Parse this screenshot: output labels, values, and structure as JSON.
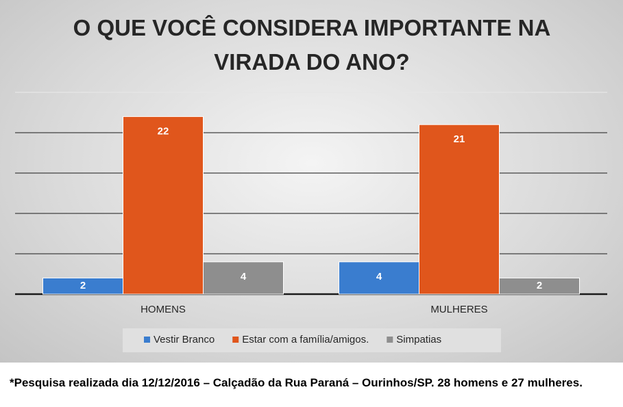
{
  "chart_data": {
    "type": "bar",
    "title": "O QUE VOCÊ CONSIDERA IMPORTANTE NA VIRADA DO ANO?",
    "categories": [
      "HOMENS",
      "MULHERES"
    ],
    "series": [
      {
        "name": "Vestir Branco",
        "color": "#3a7dcf",
        "values": [
          2,
          4
        ]
      },
      {
        "name": "Estar com a família/amigos.",
        "color": "#e0561c",
        "values": [
          22,
          21
        ]
      },
      {
        "name": "Simpatias",
        "color": "#8e8e8e",
        "values": [
          4,
          2
        ]
      }
    ],
    "ylim": [
      0,
      25
    ],
    "yticks": [
      0,
      5,
      10,
      15,
      20,
      25
    ],
    "grid": true,
    "legend": "bottom"
  },
  "note": "*Pesquisa realizada dia 12/12/2016 – Calçadão da Rua Paraná – Ourinhos/SP. 28 homens e 27 mulheres."
}
